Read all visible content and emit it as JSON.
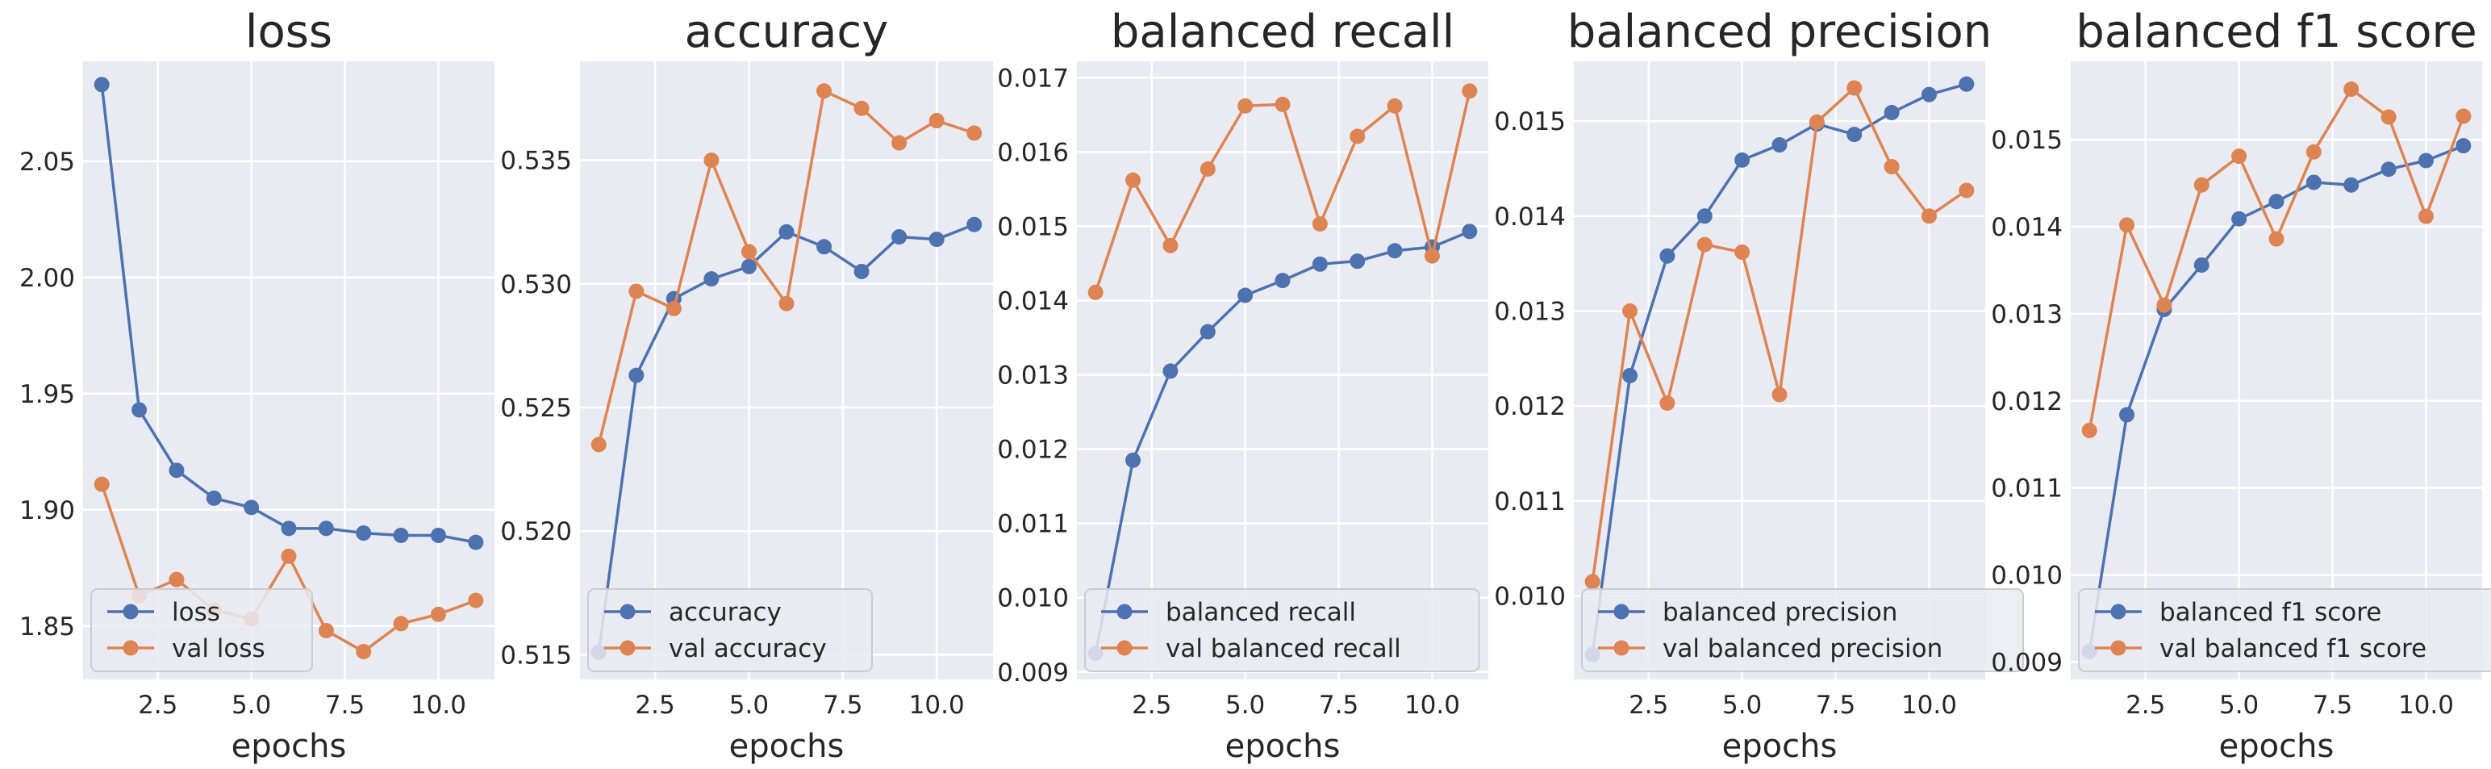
{
  "colors": {
    "train": "#4c72b0",
    "val": "#dd8452",
    "panel_bg": "#eaeaf2",
    "grid": "#ffffff",
    "text": "#262626"
  },
  "chart_data": [
    {
      "type": "line",
      "title": "loss",
      "xlabel": "epochs",
      "ylabel": "",
      "xlim": [
        0.5,
        11.5
      ],
      "ylim": [
        1.827,
        2.093
      ],
      "x": [
        1,
        2,
        3,
        4,
        5,
        6,
        7,
        8,
        9,
        10,
        11
      ],
      "x_ticks": [
        2.5,
        5.0,
        7.5,
        10.0
      ],
      "x_tick_labels": [
        "2.5",
        "5.0",
        "7.5",
        "10.0"
      ],
      "y_ticks": [
        1.85,
        1.9,
        1.95,
        2.0,
        2.05
      ],
      "y_tick_labels": [
        "1.85",
        "1.90",
        "1.95",
        "2.00",
        "2.05"
      ],
      "grid": true,
      "legend": "lower-left",
      "series": [
        {
          "name": "loss",
          "color": "#4c72b0",
          "values": [
            2.083,
            1.943,
            1.917,
            1.905,
            1.901,
            1.892,
            1.892,
            1.89,
            1.889,
            1.889,
            1.886
          ]
        },
        {
          "name": "val loss",
          "color": "#dd8452",
          "values": [
            1.911,
            1.863,
            1.87,
            1.857,
            1.853,
            1.88,
            1.848,
            1.839,
            1.851,
            1.855,
            1.861
          ]
        }
      ]
    },
    {
      "type": "line",
      "title": "accuracy",
      "xlabel": "epochs",
      "ylabel": "",
      "xlim": [
        0.5,
        11.5
      ],
      "ylim": [
        0.514,
        0.539
      ],
      "x": [
        1,
        2,
        3,
        4,
        5,
        6,
        7,
        8,
        9,
        10,
        11
      ],
      "x_ticks": [
        2.5,
        5.0,
        7.5,
        10.0
      ],
      "x_tick_labels": [
        "2.5",
        "5.0",
        "7.5",
        "10.0"
      ],
      "y_ticks": [
        0.515,
        0.52,
        0.525,
        0.53,
        0.535
      ],
      "y_tick_labels": [
        "0.515",
        "0.520",
        "0.525",
        "0.530",
        "0.535"
      ],
      "grid": true,
      "legend": "lower-left",
      "series": [
        {
          "name": "accuracy",
          "color": "#4c72b0",
          "values": [
            0.5151,
            0.5263,
            0.5294,
            0.5302,
            0.5307,
            0.5321,
            0.5315,
            0.5305,
            0.5319,
            0.5318,
            0.5324
          ]
        },
        {
          "name": "val accuracy",
          "color": "#dd8452",
          "values": [
            0.5235,
            0.5297,
            0.529,
            0.535,
            0.5313,
            0.5292,
            0.5378,
            0.5371,
            0.5357,
            0.5366,
            0.5361
          ]
        }
      ]
    },
    {
      "type": "line",
      "title": "balanced recall",
      "xlabel": "epochs",
      "ylabel": "",
      "xlim": [
        0.5,
        11.5
      ],
      "ylim": [
        0.0089,
        0.01722
      ],
      "x": [
        1,
        2,
        3,
        4,
        5,
        6,
        7,
        8,
        9,
        10,
        11
      ],
      "x_ticks": [
        2.5,
        5.0,
        7.5,
        10.0
      ],
      "x_tick_labels": [
        "2.5",
        "5.0",
        "7.5",
        "10.0"
      ],
      "y_ticks": [
        0.009,
        0.01,
        0.011,
        0.012,
        0.013,
        0.014,
        0.015,
        0.016,
        0.017
      ],
      "y_tick_labels": [
        "0.009",
        "0.010",
        "0.011",
        "0.012",
        "0.013",
        "0.014",
        "0.015",
        "0.016",
        "0.017"
      ],
      "grid": true,
      "legend": "lower-left",
      "series": [
        {
          "name": "balanced recall",
          "color": "#4c72b0",
          "values": [
            0.00925,
            0.01185,
            0.01305,
            0.01358,
            0.01407,
            0.01427,
            0.01449,
            0.01453,
            0.01467,
            0.01472,
            0.01493
          ]
        },
        {
          "name": "val balanced recall",
          "color": "#dd8452",
          "values": [
            0.01411,
            0.01562,
            0.01474,
            0.01577,
            0.01662,
            0.01664,
            0.01503,
            0.01621,
            0.01662,
            0.0146,
            0.01682
          ]
        }
      ]
    },
    {
      "type": "line",
      "title": "balanced precision",
      "xlabel": "epochs",
      "ylabel": "",
      "xlim": [
        0.5,
        11.5
      ],
      "ylim": [
        0.00912,
        0.01563
      ],
      "x": [
        1,
        2,
        3,
        4,
        5,
        6,
        7,
        8,
        9,
        10,
        11
      ],
      "x_ticks": [
        2.5,
        5.0,
        7.5,
        10.0
      ],
      "x_tick_labels": [
        "2.5",
        "5.0",
        "7.5",
        "10.0"
      ],
      "y_ticks": [
        0.01,
        0.011,
        0.012,
        0.013,
        0.014,
        0.015
      ],
      "y_tick_labels": [
        "0.010",
        "0.011",
        "0.012",
        "0.013",
        "0.014",
        "0.015"
      ],
      "grid": true,
      "legend": "lower-left",
      "series": [
        {
          "name": "balanced precision",
          "color": "#4c72b0",
          "values": [
            0.00938,
            0.01232,
            0.01358,
            0.014,
            0.01459,
            0.01475,
            0.01497,
            0.01486,
            0.01509,
            0.01528,
            0.01539
          ]
        },
        {
          "name": "val balanced precision",
          "color": "#dd8452",
          "values": [
            0.01015,
            0.013,
            0.01203,
            0.0137,
            0.01362,
            0.01212,
            0.01499,
            0.01535,
            0.01452,
            0.014,
            0.01427
          ]
        }
      ]
    },
    {
      "type": "line",
      "title": "balanced f1 score",
      "xlabel": "epochs",
      "ylabel": "",
      "xlim": [
        0.5,
        11.5
      ],
      "ylim": [
        0.0088,
        0.0159
      ],
      "x": [
        1,
        2,
        3,
        4,
        5,
        6,
        7,
        8,
        9,
        10,
        11
      ],
      "x_ticks": [
        2.5,
        5.0,
        7.5,
        10.0
      ],
      "x_tick_labels": [
        "2.5",
        "5.0",
        "7.5",
        "10.0"
      ],
      "y_ticks": [
        0.009,
        0.01,
        0.011,
        0.012,
        0.013,
        0.014,
        0.015
      ],
      "y_tick_labels": [
        "0.009",
        "0.010",
        "0.011",
        "0.012",
        "0.013",
        "0.014",
        "0.015"
      ],
      "grid": true,
      "legend": "lower-left",
      "series": [
        {
          "name": "balanced f1 score",
          "color": "#4c72b0",
          "values": [
            0.00912,
            0.01184,
            0.01305,
            0.01356,
            0.01409,
            0.01429,
            0.01451,
            0.01448,
            0.01466,
            0.01476,
            0.01493
          ]
        },
        {
          "name": "val balanced f1 score",
          "color": "#dd8452",
          "values": [
            0.01166,
            0.01402,
            0.0131,
            0.01448,
            0.01481,
            0.01386,
            0.01486,
            0.01558,
            0.01526,
            0.01412,
            0.01527
          ]
        }
      ]
    }
  ]
}
